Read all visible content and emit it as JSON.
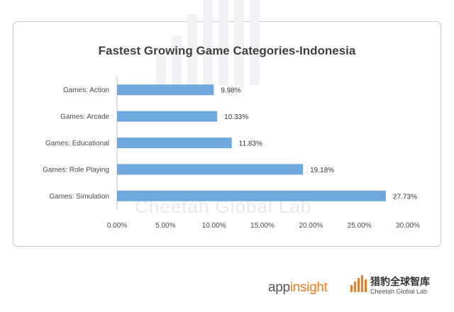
{
  "chart_data": {
    "type": "bar",
    "orientation": "horizontal",
    "title": "Fastest Growing Game Categories-Indonesia",
    "categories": [
      "Games: Action",
      "Games: Arcade",
      "Games: Educational",
      "Games: Role Playing",
      "Games: Simulation"
    ],
    "values": [
      9.98,
      10.33,
      11.83,
      19.18,
      27.73
    ],
    "data_labels": [
      "9.98%",
      "10.33%",
      "11.83%",
      "19.18%",
      "27.73%"
    ],
    "x_ticks": [
      "0.00%",
      "5.00%",
      "10.00%",
      "15.00%",
      "20.00%",
      "25.00%",
      "30.00%"
    ],
    "xlim": [
      0,
      30
    ],
    "grid": false,
    "bar_color": "#6fa8dc",
    "watermark": "Cheetah Global Lab"
  },
  "footer": {
    "app_prefix": "app",
    "app_suffix": "insight",
    "cheetah_cn": "猎豹全球智库",
    "cheetah_en": "Cheetah Global Lab"
  },
  "colors": {
    "accent": "#ef7d22",
    "bar": "#6fa8dc",
    "text": "#404040"
  }
}
